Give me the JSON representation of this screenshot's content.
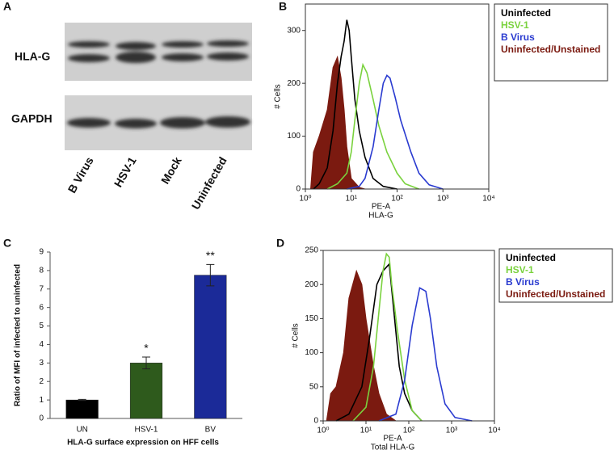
{
  "blot": {
    "panel": "A",
    "rows": [
      "HLA-G",
      "GAPDH"
    ],
    "lanes": [
      "B Virus",
      "HSV-1",
      "Mock",
      "Uninfected"
    ]
  },
  "chart_data": [
    {
      "type": "line",
      "panel": "B",
      "xscale": "log",
      "xlim": [
        1,
        10000
      ],
      "xticks": [
        {
          "value": 1,
          "label": "10⁰"
        },
        {
          "value": 10,
          "label": "10¹"
        },
        {
          "value": 100,
          "label": "10²"
        },
        {
          "value": 1000,
          "label": "10³"
        },
        {
          "value": 10000,
          "label": "10⁴"
        }
      ],
      "ylim": [
        0,
        350
      ],
      "yticks": [
        0,
        100,
        200,
        300
      ],
      "ylabel": "# Cells",
      "xlabel": [
        "PE-A",
        "HLA-G"
      ],
      "legend": "right",
      "series": [
        {
          "name": "Uninfected/Unstained",
          "color": "#7b1a10",
          "fill": true,
          "x": [
            1.3,
            1.5,
            2,
            3,
            4,
            5,
            6,
            7,
            8,
            10,
            15,
            20
          ],
          "values": [
            0,
            70,
            100,
            150,
            230,
            250,
            210,
            150,
            80,
            20,
            3,
            0
          ]
        },
        {
          "name": "Uninfected",
          "color": "#000000",
          "fill": false,
          "x": [
            1.5,
            2,
            3,
            4,
            5,
            6,
            7,
            8,
            9,
            10,
            12,
            15,
            20,
            30,
            50,
            100
          ],
          "values": [
            0,
            10,
            40,
            110,
            200,
            250,
            280,
            320,
            300,
            250,
            170,
            110,
            60,
            20,
            5,
            0
          ]
        },
        {
          "name": "HSV-1",
          "color": "#7ad23e",
          "fill": false,
          "x": [
            3,
            5,
            8,
            10,
            12,
            15,
            18,
            22,
            30,
            40,
            60,
            100,
            150,
            300
          ],
          "values": [
            0,
            10,
            30,
            70,
            130,
            200,
            235,
            220,
            170,
            120,
            70,
            30,
            10,
            0
          ]
        },
        {
          "name": "B Virus",
          "color": "#2a3bd0",
          "fill": false,
          "x": [
            8,
            15,
            20,
            30,
            40,
            50,
            60,
            70,
            90,
            120,
            200,
            300,
            500,
            1000
          ],
          "values": [
            0,
            5,
            20,
            80,
            150,
            200,
            215,
            210,
            175,
            130,
            70,
            30,
            8,
            0
          ]
        }
      ]
    },
    {
      "type": "bar",
      "panel": "C",
      "categories": [
        "UN",
        "HSV-1",
        "BV"
      ],
      "values": [
        1,
        3,
        7.75
      ],
      "errors": [
        0.03,
        0.32,
        0.58
      ],
      "colors": [
        "#000000",
        "#2e5a1c",
        "#1b2a98"
      ],
      "annotations": [
        null,
        "*",
        "**"
      ],
      "ylim": [
        0,
        9
      ],
      "yticks": [
        0,
        1,
        2,
        3,
        4,
        5,
        6,
        7,
        8,
        9
      ],
      "ylabel": "Ratio of MFI of infected to uninfected",
      "xlabel": "HLA-G surface expression on HFF cells"
    },
    {
      "type": "line",
      "panel": "D",
      "xscale": "log",
      "xlim": [
        1,
        10000
      ],
      "xticks": [
        {
          "value": 1,
          "label": "10⁰"
        },
        {
          "value": 10,
          "label": "10¹"
        },
        {
          "value": 100,
          "label": "10²"
        },
        {
          "value": 1000,
          "label": "10³"
        },
        {
          "value": 10000,
          "label": "10⁴"
        }
      ],
      "ylim": [
        0,
        250
      ],
      "yticks": [
        0,
        50,
        100,
        150,
        200,
        250
      ],
      "ylabel": "# Cells",
      "xlabel": [
        "PE-A",
        "Total HLA-G"
      ],
      "legend": "right",
      "series": [
        {
          "name": "Uninfected/Unstained",
          "color": "#7b1a10",
          "fill": true,
          "x": [
            1.2,
            1.5,
            2,
            3,
            4,
            6,
            8,
            10,
            15,
            20,
            30,
            50
          ],
          "values": [
            0,
            40,
            50,
            100,
            180,
            220,
            200,
            150,
            80,
            40,
            10,
            0
          ]
        },
        {
          "name": "Uninfected",
          "color": "#000000",
          "fill": false,
          "x": [
            2,
            4,
            8,
            12,
            18,
            25,
            35,
            45,
            60,
            80,
            120,
            200
          ],
          "values": [
            0,
            10,
            50,
            120,
            200,
            220,
            230,
            160,
            80,
            40,
            15,
            0
          ]
        },
        {
          "name": "HSV-1",
          "color": "#7ad23e",
          "fill": false,
          "x": [
            5,
            10,
            15,
            20,
            25,
            30,
            35,
            40,
            55,
            80,
            120,
            200
          ],
          "values": [
            0,
            20,
            80,
            160,
            220,
            245,
            240,
            200,
            130,
            60,
            15,
            0
          ]
        },
        {
          "name": "B Virus",
          "color": "#2a3bd0",
          "fill": false,
          "x": [
            20,
            50,
            80,
            120,
            180,
            250,
            320,
            450,
            700,
            1200,
            3000
          ],
          "values": [
            0,
            10,
            60,
            140,
            195,
            190,
            150,
            80,
            25,
            5,
            0
          ]
        }
      ]
    }
  ]
}
